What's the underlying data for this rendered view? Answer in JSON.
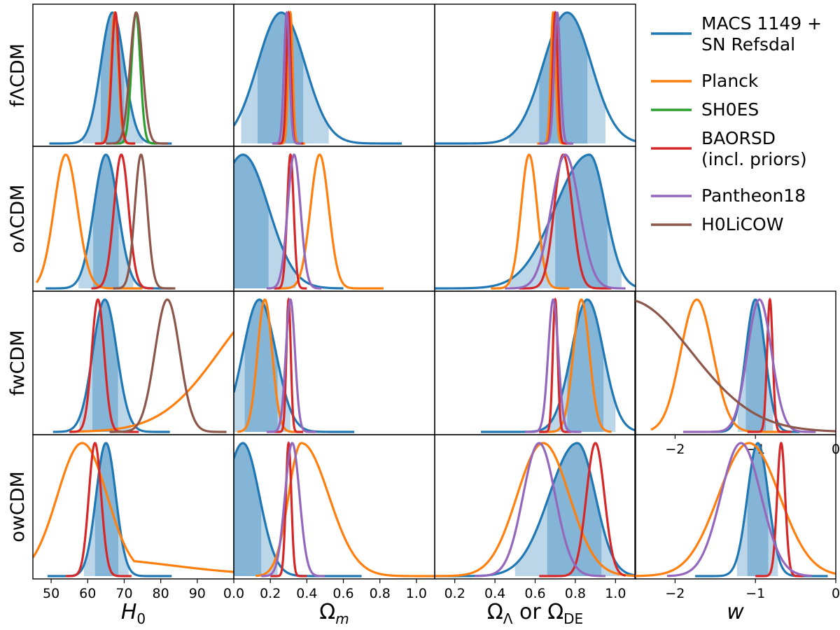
{
  "figure": {
    "rows": [
      "fΛCDM",
      "oΛCDM",
      "fwCDM",
      "owCDM"
    ],
    "columns": [
      {
        "key": "H0",
        "label": "H",
        "label_sub": "0",
        "ticks": [
          "50",
          "60",
          "70",
          "80",
          "90",
          "0.0"
        ],
        "tick_values": [
          50,
          60,
          70,
          80,
          90,
          100
        ],
        "xlim": [
          45,
          100
        ]
      },
      {
        "key": "Om",
        "label": "Ω",
        "label_sub": "m",
        "ticks": [
          "0.2",
          "0.4",
          "0.6",
          "0.8",
          "1.0"
        ],
        "tick_values": [
          0.2,
          0.4,
          0.6,
          0.8,
          1.0
        ],
        "xlim": [
          0.0,
          1.1
        ]
      },
      {
        "key": "OL",
        "label": "Ω",
        "label_sub": "Λ",
        "label_mid": " or Ω",
        "label_sub2": "DE",
        "ticks": [
          "0.2",
          "0.4",
          "0.6",
          "0.8",
          "1.0"
        ],
        "tick_values": [
          0.2,
          0.4,
          0.6,
          0.8,
          1.0
        ],
        "xlim": [
          0.1,
          1.1
        ]
      },
      {
        "key": "w",
        "label": "w",
        "ticks": [
          "−2",
          "−1",
          "0"
        ],
        "tick_values": [
          -2,
          -1,
          0
        ],
        "xlim": [
          -2.5,
          0
        ]
      }
    ],
    "legend": [
      {
        "label": "MACS 1149 +",
        "label2": " SN Refsdal",
        "color": "#1f77b4"
      },
      {
        "label": "Planck",
        "color": "#ff7f0e"
      },
      {
        "label": "SH0ES",
        "color": "#2ca02c"
      },
      {
        "label": "BAORSD",
        "label2": "(incl. priors)",
        "color": "#d62728"
      },
      {
        "label": "Pantheon18",
        "color": "#9467bd"
      },
      {
        "label": "H0LiCOW",
        "color": "#8c564b"
      }
    ]
  },
  "chart_data": {
    "type": "line",
    "description_kind": "marginalized posterior distributions",
    "series_colors": {
      "MACS": "#1f77b4",
      "Planck": "#ff7f0e",
      "SH0ES": "#2ca02c",
      "BAORSD": "#d62728",
      "Pantheon18": "#9467bd",
      "H0LiCOW": "#8c564b"
    },
    "panels": [
      {
        "row": 0,
        "col": 0,
        "macs": {
          "peak": 66.8,
          "sd": 3.2,
          "i68": [
            63.6,
            70.0
          ],
          "i95": [
            58.6,
            75.2
          ],
          "range": [
            49.5,
            83
          ]
        },
        "curves": [
          {
            "series": "Planck",
            "peak": 67.4,
            "sd": 1.0,
            "range": [
              62,
              73
            ]
          },
          {
            "series": "SH0ES",
            "peak": 73.2,
            "sd": 1.2,
            "range": [
              67,
              79
            ]
          },
          {
            "series": "BAORSD",
            "peak": 67.6,
            "sd": 1.0,
            "range": [
              62,
              73
            ]
          },
          {
            "series": "H0LiCOW",
            "peak": 73.3,
            "sd": 1.7,
            "range": [
              65,
              82
            ]
          }
        ]
      },
      {
        "row": 0,
        "col": 1,
        "macs": {
          "peak": 0.26,
          "sd": 0.13,
          "i68": [
            0.13,
            0.38
          ],
          "i95": [
            0.04,
            0.52
          ],
          "range": [
            0.0,
            0.92
          ]
        },
        "curves": [
          {
            "series": "Planck",
            "peak": 0.31,
            "sd": 0.012,
            "range": [
              0.23,
              0.39
            ]
          },
          {
            "series": "BAORSD",
            "peak": 0.3,
            "sd": 0.012,
            "range": [
              0.22,
              0.38
            ]
          },
          {
            "series": "Pantheon18",
            "peak": 0.29,
            "sd": 0.015,
            "range": [
              0.21,
              0.37
            ]
          }
        ]
      },
      {
        "row": 0,
        "col": 2,
        "macs": {
          "peak": 0.76,
          "sd": 0.12,
          "i68": [
            0.62,
            0.86
          ],
          "i95": [
            0.47,
            0.95
          ],
          "range": [
            0.1,
            1.1
          ]
        },
        "curves": [
          {
            "series": "Planck",
            "peak": 0.69,
            "sd": 0.012,
            "range": [
              0.61,
              0.77
            ]
          },
          {
            "series": "BAORSD",
            "peak": 0.7,
            "sd": 0.012,
            "range": [
              0.62,
              0.78
            ]
          },
          {
            "series": "Pantheon18",
            "peak": 0.71,
            "sd": 0.015,
            "range": [
              0.62,
              0.79
            ]
          }
        ]
      },
      {
        "row": 1,
        "col": 0,
        "macs": {
          "peak": 65.0,
          "sd": 3.3,
          "i68": [
            61.5,
            68.5
          ],
          "i95": [
            57.5,
            72.5
          ],
          "range": [
            48.5,
            83
          ]
        },
        "curves": [
          {
            "series": "Planck",
            "peak": 54.0,
            "sd": 3.2,
            "range": [
              46,
              75
            ]
          },
          {
            "series": "BAORSD",
            "peak": 69.2,
            "sd": 2.0,
            "range": [
              61,
              78
            ]
          },
          {
            "series": "H0LiCOW",
            "peak": 74.6,
            "sd": 1.7,
            "range": [
              67,
              84
            ]
          }
        ]
      },
      {
        "row": 1,
        "col": 1,
        "macs": {
          "peak": 0.05,
          "sd": 0.14,
          "i68": [
            0.0,
            0.19
          ],
          "i95": [
            0.0,
            0.34
          ],
          "range": [
            0.0,
            0.6
          ]
        },
        "curves": [
          {
            "series": "Planck",
            "peak": 0.47,
            "sd": 0.05,
            "range": [
              0.24,
              0.82
            ]
          },
          {
            "series": "BAORSD",
            "peak": 0.31,
            "sd": 0.018,
            "range": [
              0.22,
              0.4
            ]
          },
          {
            "series": "Pantheon18",
            "peak": 0.33,
            "sd": 0.035,
            "range": [
              0.18,
              0.48
            ]
          }
        ]
      },
      {
        "row": 1,
        "col": 2,
        "macs": {
          "peak": 0.87,
          "sd": 0.17,
          "sd_right": 0.08,
          "i68": [
            0.7,
            0.96
          ],
          "i95": [
            0.47,
            1.03
          ],
          "range": [
            0.1,
            1.1
          ]
        },
        "curves": [
          {
            "series": "Planck",
            "peak": 0.57,
            "sd": 0.04,
            "range": [
              0.38,
              0.77
            ]
          },
          {
            "series": "BAORSD",
            "peak": 0.74,
            "sd": 0.045,
            "range": [
              0.52,
              0.98
            ]
          },
          {
            "series": "Pantheon18",
            "peak": 0.75,
            "sd": 0.07,
            "range": [
              0.45,
              1.05
            ]
          }
        ]
      },
      {
        "row": 2,
        "col": 0,
        "macs": {
          "peak": 64.7,
          "sd": 3.3,
          "i68": [
            61.3,
            68.3
          ],
          "i95": [
            57.7,
            71.8
          ],
          "range": [
            50.5,
            82.5
          ]
        },
        "curves": [
          {
            "series": "Planck",
            "peak": 112,
            "sd": 16,
            "range": [
              55,
              100
            ]
          },
          {
            "series": "BAORSD",
            "peak": 62.8,
            "sd": 1.7,
            "range": [
              55,
              74
            ]
          },
          {
            "series": "H0LiCOW",
            "peak": 81.8,
            "sd": 3.4,
            "range": [
              66,
              98
            ]
          }
        ]
      },
      {
        "row": 2,
        "col": 1,
        "macs": {
          "peak": 0.14,
          "sd": 0.09,
          "i68": [
            0.06,
            0.24
          ],
          "i95": [
            0.0,
            0.31
          ],
          "range": [
            0.0,
            0.66
          ]
        },
        "curves": [
          {
            "series": "Planck",
            "peak": 0.17,
            "sd": 0.04,
            "range": [
              0.02,
              0.38
            ]
          },
          {
            "series": "BAORSD",
            "peak": 0.3,
            "sd": 0.012,
            "range": [
              0.22,
              0.38
            ]
          },
          {
            "series": "Pantheon18",
            "peak": 0.31,
            "sd": 0.025,
            "range": [
              0.18,
              0.45
            ]
          }
        ]
      },
      {
        "row": 2,
        "col": 2,
        "macs": {
          "peak": 0.86,
          "sd": 0.08,
          "i68": [
            0.76,
            0.94
          ],
          "i95": [
            0.63,
            1.0
          ],
          "range": [
            0.33,
            1.1
          ]
        },
        "curves": [
          {
            "series": "Planck",
            "peak": 0.83,
            "sd": 0.04,
            "range": [
              0.62,
              0.98
            ]
          },
          {
            "series": "BAORSD",
            "peak": 0.7,
            "sd": 0.012,
            "range": [
              0.62,
              0.78
            ]
          },
          {
            "series": "Pantheon18",
            "peak": 0.69,
            "sd": 0.025,
            "range": [
              0.55,
              0.83
            ]
          }
        ]
      },
      {
        "row": 2,
        "col": 3,
        "macs": {
          "peak": -1.0,
          "sd": 0.12,
          "i68": [
            -1.12,
            -0.87
          ],
          "i95": [
            -1.22,
            -0.78
          ],
          "range": [
            -1.55,
            -0.45
          ]
        },
        "curves": [
          {
            "series": "Planck",
            "peak": -1.73,
            "sd": 0.2,
            "range": [
              -2.3,
              -0.6
            ]
          },
          {
            "series": "BAORSD",
            "peak": -0.82,
            "sd": 0.035,
            "range": [
              -1.1,
              -0.55
            ]
          },
          {
            "series": "Pantheon18",
            "peak": -0.95,
            "sd": 0.15,
            "range": [
              -1.9,
              -0.25
            ]
          },
          {
            "series": "H0LiCOW",
            "peak": -2.6,
            "sd": 0.8,
            "range": [
              -2.5,
              0
            ]
          }
        ]
      },
      {
        "row": 3,
        "col": 0,
        "macs": {
          "peak": 65.0,
          "sd": 2.7,
          "i68": [
            62.0,
            68.4
          ],
          "i95": [
            59.0,
            71.2
          ],
          "range": [
            49,
            83
          ]
        },
        "curves": [
          {
            "series": "Planck",
            "peak": 58.5,
            "sd": 6.8,
            "range": [
              45,
              100
            ],
            "tail": {
              "amp": 0.16,
              "mid": 83,
              "width": 12
            }
          },
          {
            "series": "BAORSD",
            "peak": 62.0,
            "sd": 1.7,
            "range": [
              54,
              72
            ]
          }
        ]
      },
      {
        "row": 3,
        "col": 1,
        "macs": {
          "peak": 0.05,
          "sd": 0.1,
          "sd_right": 0.09,
          "i68": [
            0.0,
            0.15
          ],
          "i95": [
            0.0,
            0.24
          ],
          "range": [
            0.0,
            0.7
          ]
        },
        "curves": [
          {
            "series": "Planck",
            "peak": 0.37,
            "sd": 0.07,
            "sd_right": 0.15,
            "range": [
              0.12,
              1.1
            ]
          },
          {
            "series": "BAORSD",
            "peak": 0.3,
            "sd": 0.015,
            "range": [
              0.2,
              0.4
            ]
          },
          {
            "series": "Pantheon18",
            "peak": 0.32,
            "sd": 0.04,
            "range": [
              0.15,
              0.5
            ]
          }
        ]
      },
      {
        "row": 3,
        "col": 2,
        "macs": {
          "peak": 0.81,
          "sd": 0.14,
          "sd_right": 0.09,
          "i68": [
            0.66,
            0.93
          ],
          "i95": [
            0.5,
            1.02
          ],
          "range": [
            0.1,
            1.1
          ]
        },
        "curves": [
          {
            "series": "Planck",
            "peak": 0.64,
            "sd": 0.13,
            "range": [
              0.1,
              1.1
            ]
          },
          {
            "series": "BAORSD",
            "peak": 0.9,
            "sd": 0.045,
            "range": [
              0.62,
              1.05
            ]
          },
          {
            "series": "Pantheon18",
            "peak": 0.62,
            "sd": 0.08,
            "range": [
              0.3,
              0.95
            ]
          }
        ]
      },
      {
        "row": 3,
        "col": 3,
        "macs": {
          "peak": -0.97,
          "sd": 0.13,
          "i68": [
            -1.1,
            -0.84
          ],
          "i95": [
            -1.23,
            -0.72
          ],
          "range": [
            -1.75,
            -0.1
          ]
        },
        "curves": [
          {
            "series": "Planck",
            "peak": -1.08,
            "sd": 0.38,
            "range": [
              -2.5,
              0
            ]
          },
          {
            "series": "BAORSD",
            "peak": -0.68,
            "sd": 0.05,
            "range": [
              -1.0,
              -0.4
            ]
          },
          {
            "series": "Pantheon18",
            "peak": -1.18,
            "sd": 0.25,
            "range": [
              -2.1,
              -0.3
            ]
          }
        ]
      }
    ]
  }
}
